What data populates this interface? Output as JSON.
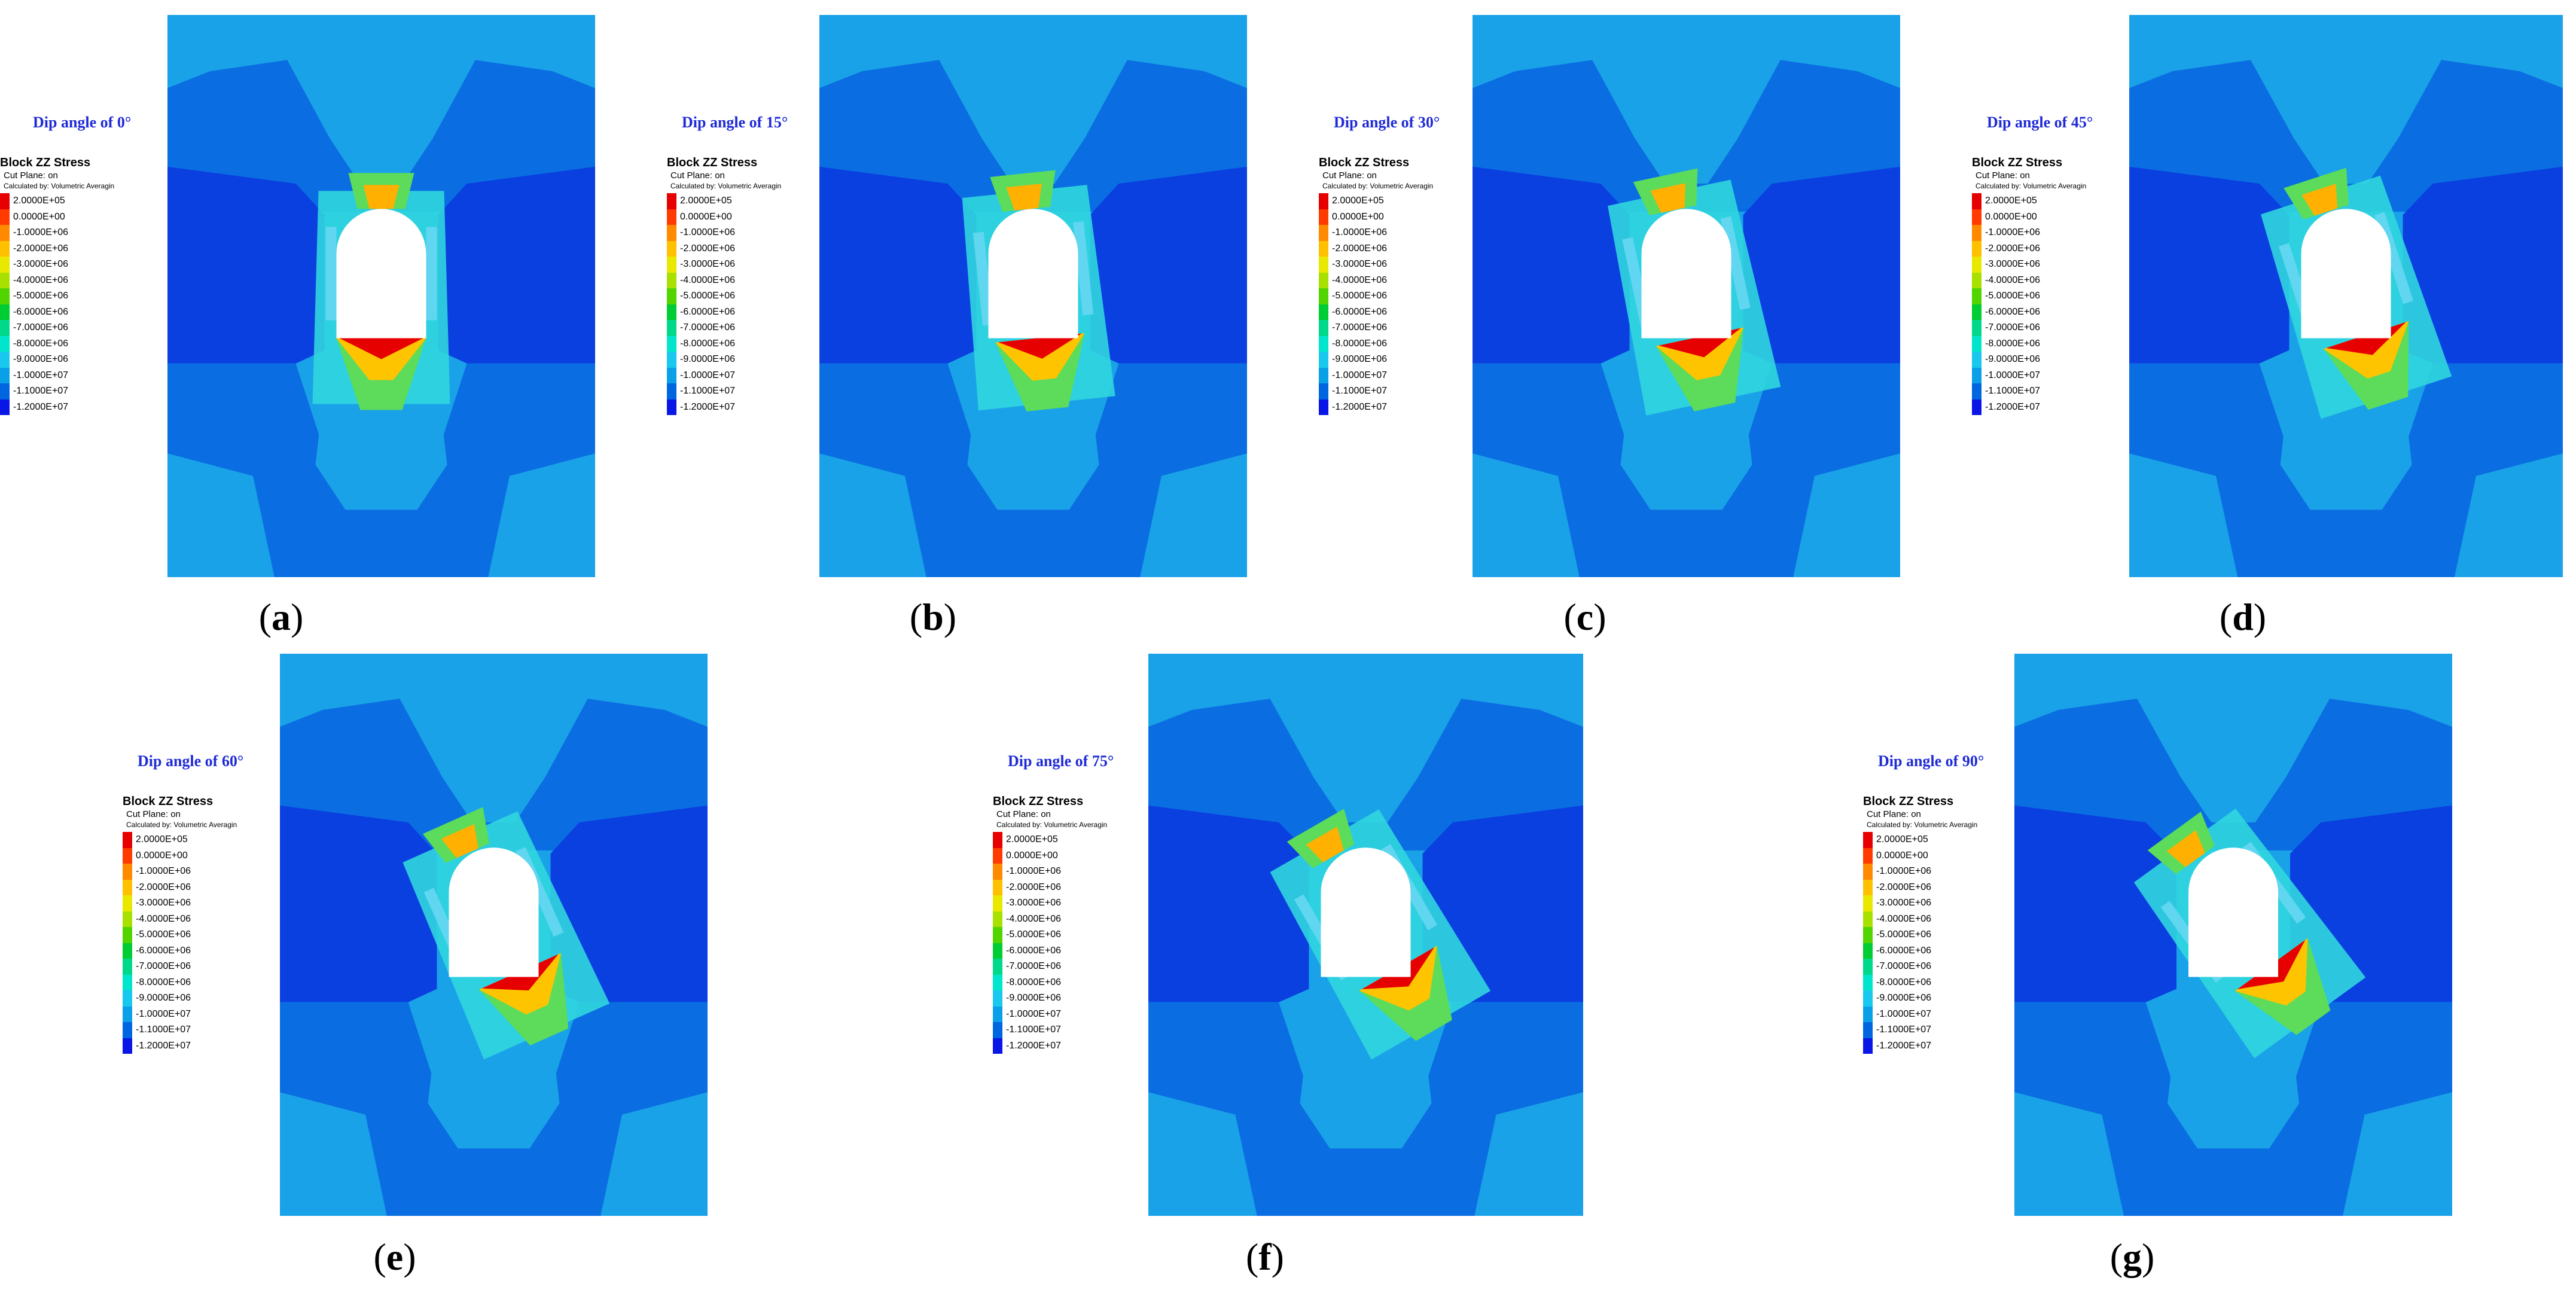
{
  "panels": [
    {
      "id": "a",
      "label": "a",
      "title": "Dip angle of 0°"
    },
    {
      "id": "b",
      "label": "b",
      "title": "Dip angle of 15°"
    },
    {
      "id": "c",
      "label": "c",
      "title": "Dip angle of 30°"
    },
    {
      "id": "d",
      "label": "d",
      "title": "Dip angle of 45°"
    },
    {
      "id": "e",
      "label": "e",
      "title": "Dip angle of 60°"
    },
    {
      "id": "f",
      "label": "f",
      "title": "Dip angle of 75°"
    },
    {
      "id": "g",
      "label": "g",
      "title": "Dip angle of 90°"
    }
  ],
  "legend": {
    "title": "Block ZZ Stress",
    "cut_plane": "Cut Plane: on",
    "calculated_by": "Calculated by:  Volumetric Averagin",
    "entries": [
      {
        "value": "2.0000E+05",
        "color": "#e60000"
      },
      {
        "value": "0.0000E+00",
        "color": "#ff3b00"
      },
      {
        "value": "-1.0000E+06",
        "color": "#ff8a00"
      },
      {
        "value": "-2.0000E+06",
        "color": "#ffc000"
      },
      {
        "value": "-3.0000E+06",
        "color": "#e8e800"
      },
      {
        "value": "-4.0000E+06",
        "color": "#a8e000"
      },
      {
        "value": "-5.0000E+06",
        "color": "#52d400"
      },
      {
        "value": "-6.0000E+06",
        "color": "#00cc33"
      },
      {
        "value": "-7.0000E+06",
        "color": "#00d98c"
      },
      {
        "value": "-8.0000E+06",
        "color": "#00e6cc"
      },
      {
        "value": "-9.0000E+06",
        "color": "#19c8ee"
      },
      {
        "value": "-1.0000E+07",
        "color": "#0aa0e8"
      },
      {
        "value": "-1.1000E+07",
        "color": "#0066e0"
      },
      {
        "value": "-1.2000E+07",
        "color": "#0a16e6"
      }
    ]
  },
  "colors": {
    "title_blue": "#1f2bd6",
    "field_light": "#1aa2e8",
    "field_mid": "#0a6ee2",
    "field_dark": "#0a40e0",
    "field_cyan": "#30d6df",
    "opening": "#ffffff"
  }
}
